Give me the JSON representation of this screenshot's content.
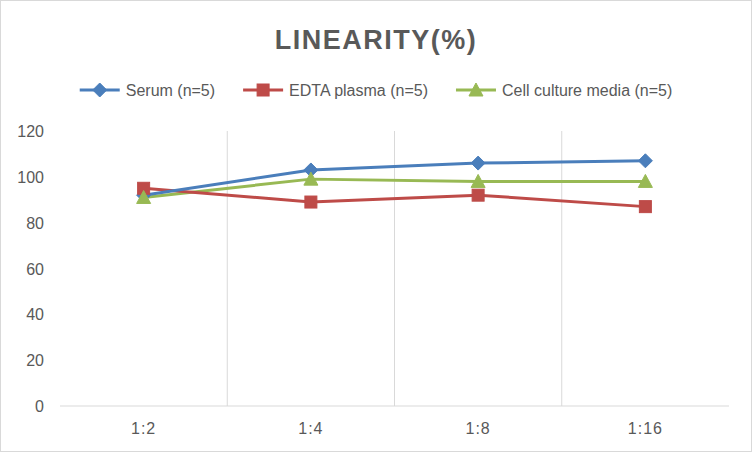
{
  "chart_data": {
    "type": "line",
    "title": "LINEARITY(%)",
    "categories": [
      "1:2",
      "1:4",
      "1:8",
      "1:16"
    ],
    "series": [
      {
        "name": "Serum (n=5)",
        "color": "#4a7ebb",
        "marker": "diamond",
        "values": [
          92,
          103,
          106,
          107
        ]
      },
      {
        "name": "EDTA plasma (n=5)",
        "color": "#be4b48",
        "marker": "square",
        "values": [
          95,
          89,
          92,
          87
        ]
      },
      {
        "name": "Cell culture media (n=5)",
        "color": "#98b954",
        "marker": "triangle",
        "values": [
          91,
          99,
          98,
          98
        ]
      }
    ],
    "ylim": [
      0,
      120
    ],
    "yticks": [
      0,
      20,
      40,
      60,
      80,
      100,
      120
    ],
    "grid": true,
    "legend": "top"
  }
}
